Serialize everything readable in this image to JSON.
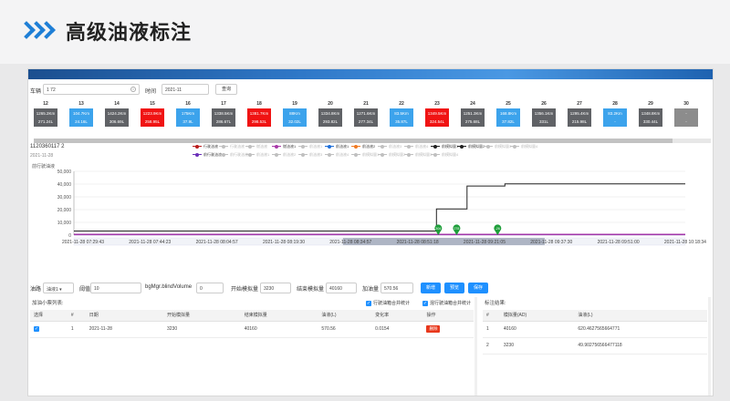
{
  "slide": {
    "title": "高级油液标注",
    "accent": "#1f7fd6"
  },
  "search": {
    "vehicle_label": "车辆",
    "vehicle_value": "1                               72",
    "time_label": "时间",
    "time_value": "2021-11",
    "query_button": "查询"
  },
  "calendar": [
    {
      "day": "12",
      "l1": "1265.2Km",
      "l2": "271.24L",
      "color": "#606266"
    },
    {
      "day": "13",
      "l1": "104.7Km",
      "l2": "24.16L",
      "color": "#3ca3ec"
    },
    {
      "day": "14",
      "l1": "1424.2Km",
      "l2": "306.69L",
      "color": "#606266"
    },
    {
      "day": "15",
      "l1": "1223.9Km",
      "l2": "258.95L",
      "color": "#f01313"
    },
    {
      "day": "16",
      "l1": "175Km",
      "l2": "37.9L",
      "color": "#3ca3ec"
    },
    {
      "day": "17",
      "l1": "1338.5Km",
      "l2": "286.67L",
      "color": "#606266"
    },
    {
      "day": "18",
      "l1": "1381.7Km",
      "l2": "298.53L",
      "color": "#f01313"
    },
    {
      "day": "19",
      "l1": "88Km",
      "l2": "32.02L",
      "color": "#3ca3ec"
    },
    {
      "day": "20",
      "l1": "1334.8Km",
      "l2": "293.82L",
      "color": "#606266"
    },
    {
      "day": "21",
      "l1": "1271.6Km",
      "l2": "277.34L",
      "color": "#606266"
    },
    {
      "day": "22",
      "l1": "83.5Km",
      "l2": "35.87L",
      "color": "#3ca3ec"
    },
    {
      "day": "23",
      "l1": "1349.5Km",
      "l2": "324.54L",
      "color": "#f01313"
    },
    {
      "day": "24",
      "l1": "1251.3Km",
      "l2": "275.68L",
      "color": "#606266"
    },
    {
      "day": "25",
      "l1": "168.8Km",
      "l2": "37.82L",
      "color": "#3ca3ec"
    },
    {
      "day": "26",
      "l1": "1356.1Km",
      "l2": "331L",
      "color": "#606266"
    },
    {
      "day": "27",
      "l1": "1295.4Km",
      "l2": "215.98L",
      "color": "#606266"
    },
    {
      "day": "28",
      "l1": "83.2Km",
      "l2": "-",
      "color": "#3ca3ec"
    },
    {
      "day": "29",
      "l1": "1348.8Km",
      "l2": "330.44L",
      "color": "#606266"
    },
    {
      "day": "30",
      "l1": "-",
      "l2": "-",
      "color": "#8c8c8c"
    }
  ],
  "device": {
    "id": "1120360117 2",
    "sub": "2021-11-28"
  },
  "legend": [
    {
      "label": "行驶油液",
      "color": "#b91c1c",
      "active": true
    },
    {
      "label": "行驶油液",
      "color": "#c0c0c0",
      "active": false
    },
    {
      "label": "燃油液",
      "color": "#c0c0c0",
      "active": false
    },
    {
      "label": "燃油液1",
      "color": "#a83aa8",
      "active": true
    },
    {
      "label": "前油液1",
      "color": "#c0c0c0",
      "active": false
    },
    {
      "label": "前油液1",
      "color": "#1e6fd9",
      "active": true
    },
    {
      "label": "前油液2",
      "color": "#f07a22",
      "active": true
    },
    {
      "label": "前油液3",
      "color": "#c0c0c0",
      "active": false
    },
    {
      "label": "前油液4",
      "color": "#c0c0c0",
      "active": false
    },
    {
      "label": "前模拟量1",
      "color": "#222222",
      "active": true
    },
    {
      "label": "前模拟量2",
      "color": "#222222",
      "active": true
    },
    {
      "label": "前模拟量3",
      "color": "#c0c0c0",
      "active": false
    },
    {
      "label": "前模拟量4",
      "color": "#c0c0c0",
      "active": false
    },
    {
      "label": "前行驶油液",
      "color": "#6a2fb8",
      "active": true
    },
    {
      "label": "前行驶油液",
      "color": "#c0c0c0",
      "active": false
    },
    {
      "label": "前油液1",
      "color": "#c0c0c0",
      "active": false
    },
    {
      "label": "前油液2",
      "color": "#c0c0c0",
      "active": false
    },
    {
      "label": "前油液3",
      "color": "#c0c0c0",
      "active": false
    },
    {
      "label": "前油液4",
      "color": "#c0c0c0",
      "active": false
    },
    {
      "label": "前模拟量1",
      "color": "#c0c0c0",
      "active": false
    },
    {
      "label": "前模拟量2",
      "color": "#c0c0c0",
      "active": false
    },
    {
      "label": "前模拟量3",
      "color": "#c0c0c0",
      "active": false
    },
    {
      "label": "前模拟量4",
      "color": "#c0c0c0",
      "active": false
    }
  ],
  "chart_data": {
    "type": "line",
    "ylabel": "前行驶油液",
    "ylim": [
      0,
      50000
    ],
    "yticks": [
      "50,000",
      "40,000",
      "30,000",
      "20,000",
      "10,000",
      "0"
    ],
    "xticks": [
      "2021-11-28 07:29:43",
      "2021-11-28 07:44:23",
      "2021-11-28 08:04:57",
      "2021-11-28 08:19:30",
      "2021-11-28 08:34:57",
      "2021-11-28 08:51:18",
      "2021-11-28 09:21:05",
      "2021-11-28 09:37:30",
      "2021-11-28 09:51:00",
      "2021-11-28 10:18:34"
    ],
    "grid": true,
    "series": [
      {
        "name": "前模拟量1",
        "color": "#222222",
        "points": [
          [
            0,
            3230
          ],
          [
            0.593,
            3230
          ],
          [
            0.593,
            20500
          ],
          [
            0.643,
            20500
          ],
          [
            0.643,
            38500
          ],
          [
            0.705,
            38500
          ],
          [
            0.705,
            40160
          ],
          [
            1,
            40160
          ]
        ]
      },
      {
        "name": "燃油液1",
        "color": "#a83aa8",
        "points": [
          [
            0,
            600
          ],
          [
            1,
            600
          ]
        ]
      },
      {
        "name": "前行驶油液",
        "color": "#6a2fb8",
        "points": [
          [
            0,
            420
          ],
          [
            1,
            420
          ]
        ]
      }
    ],
    "markers": [
      {
        "x": 0.596,
        "label": "304"
      },
      {
        "x": 0.626,
        "label": "278"
      },
      {
        "x": 0.693,
        "label": "-26"
      }
    ],
    "marker_color": "#1e9e3a"
  },
  "controls": {
    "oil_label": "油路",
    "oil_value": "油液1",
    "threshold_label": "阈值",
    "threshold_value": "10",
    "volume_label": "bgMgr.blindVolume",
    "volume_value": "0",
    "start_label": "开始模拟量",
    "start_value": "3230",
    "end_label": "结束模拟量",
    "end_value": "40160",
    "add_label": "加油量",
    "add_value": "570.56",
    "new_button": "新增",
    "preview_button": "预览",
    "save_button": "保存"
  },
  "left_panel": {
    "title": "加油小票列表:",
    "check1": "行驶油箱合并统计",
    "check2": "混行驶油箱合并统计",
    "headers": [
      "选择",
      "#",
      "日期",
      "开始模拟量",
      "结束模拟量",
      "油液(L)",
      "变化率",
      "操作"
    ],
    "rows": [
      {
        "no": "1",
        "date": "2021-11-28",
        "start": "3230",
        "end": "40160",
        "oil": "570.56",
        "rate": "0.0154",
        "action": "删除"
      }
    ]
  },
  "right_panel": {
    "title": "标注结果:",
    "headers": [
      "#",
      "模拟量(AD)",
      "油液(L)"
    ],
    "rows": [
      {
        "no": "1",
        "ad": "40160",
        "oil": "620.4627565664771"
      },
      {
        "no": "2",
        "ad": "3230",
        "oil": "49.902756566477118"
      }
    ]
  }
}
